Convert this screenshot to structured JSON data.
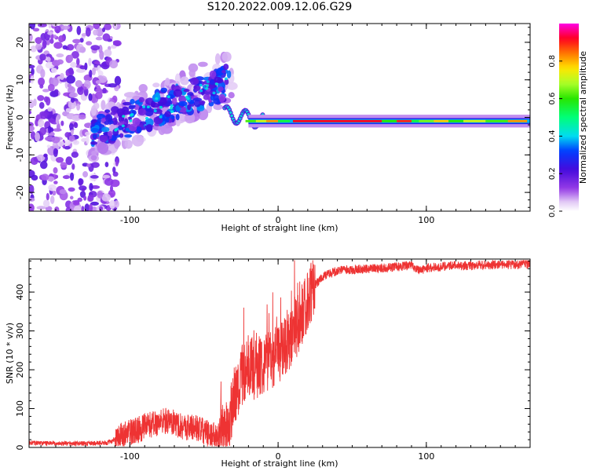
{
  "figure": {
    "title": "S120.2022.009.12.06.G29"
  },
  "chart_data": [
    {
      "type": "heatmap",
      "xlabel": "Height of straight line (km)",
      "ylabel": "Frequency (Hz)",
      "xlim": [
        -168,
        170
      ],
      "ylim": [
        -25,
        25
      ],
      "xticks": [
        -100,
        0,
        100
      ],
      "yticks": [
        -20,
        -10,
        0,
        10,
        20
      ],
      "grid": false,
      "colorbar": {
        "label": "Normalized spectral amplitude",
        "range": [
          0.0,
          1.0
        ],
        "ticks": [
          0.0,
          0.2,
          0.4,
          0.6,
          0.8
        ],
        "colormap": "gist_ncar-like (purple-blue-cyan-green-yellow-orange-red-magenta)"
      },
      "features": [
        {
          "description": "scattered low-amplitude speckle",
          "x_range": [
            -168,
            -110
          ],
          "y_range": [
            -25,
            25
          ],
          "amplitude_range": [
            0.0,
            0.2
          ]
        },
        {
          "description": "rising blob cloud",
          "x_range": [
            -125,
            -35
          ],
          "y_range": [
            -10,
            14
          ],
          "amplitude_range": [
            0.1,
            0.4
          ]
        },
        {
          "description": "narrow tone near -1 Hz",
          "x_range": [
            -35,
            170
          ],
          "y_at": -1.0,
          "amplitude_range": [
            0.3,
            1.0
          ]
        }
      ]
    },
    {
      "type": "line",
      "xlabel": "Height of straight line (km)",
      "ylabel": "SNR (10 * v/v)",
      "xlim": [
        -168,
        170
      ],
      "ylim": [
        0,
        485
      ],
      "xticks": [
        -100,
        0,
        100
      ],
      "yticks": [
        0,
        100,
        200,
        300,
        400
      ],
      "grid": false,
      "series": [
        {
          "color": "#ee3333",
          "x": [
            -168,
            -150,
            -130,
            -115,
            -105,
            -95,
            -85,
            -75,
            -65,
            -55,
            -45,
            -38,
            -34,
            -30,
            -25,
            -20,
            -15,
            -10,
            -5,
            0,
            5,
            10,
            15,
            20,
            25,
            30,
            40,
            50,
            60,
            70,
            80,
            90,
            95,
            100,
            110,
            120,
            130,
            140,
            150,
            160,
            170
          ],
          "y": [
            12,
            10,
            10,
            12,
            30,
            45,
            60,
            70,
            55,
            50,
            30,
            30,
            60,
            120,
            180,
            210,
            200,
            220,
            230,
            240,
            270,
            290,
            330,
            380,
            420,
            440,
            455,
            458,
            460,
            462,
            465,
            468,
            455,
            462,
            465,
            468,
            468,
            470,
            470,
            470,
            472
          ]
        }
      ]
    }
  ]
}
